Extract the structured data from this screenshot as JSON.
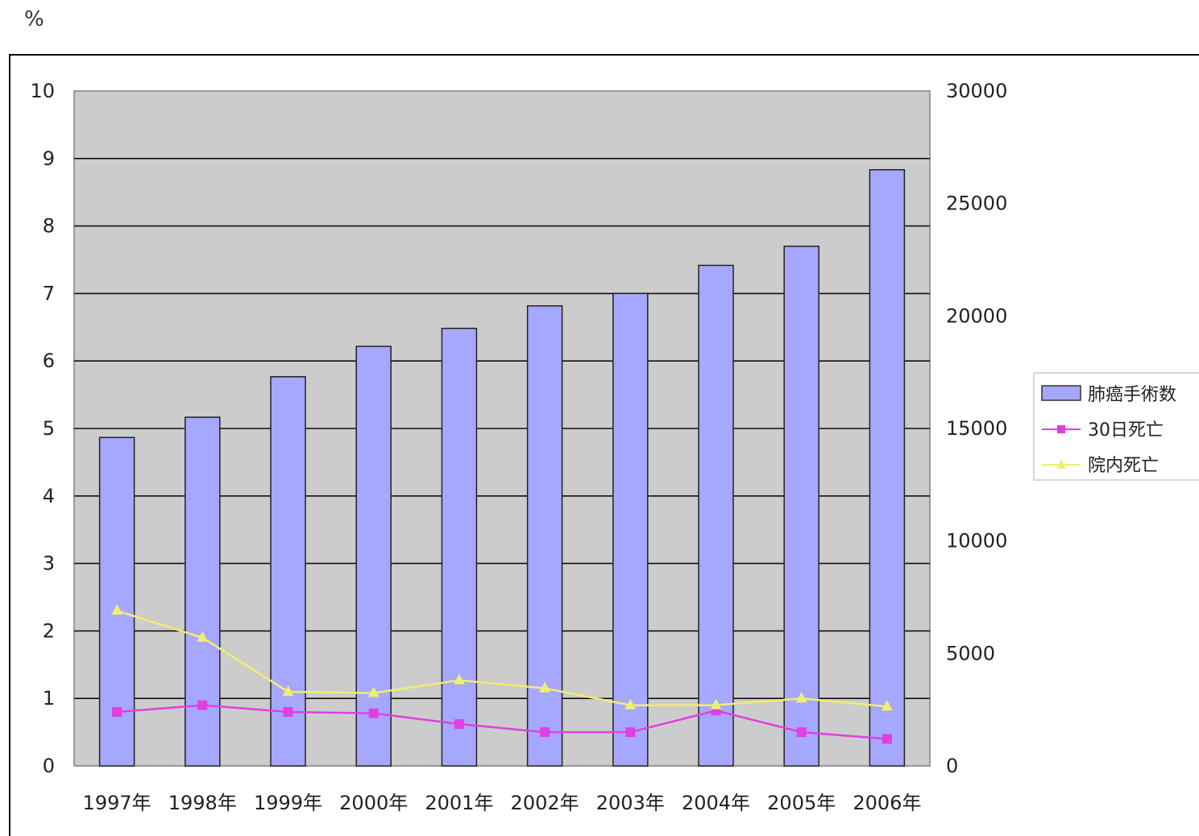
{
  "chart_data": {
    "type": "bar",
    "left_unit": "%",
    "categories": [
      "1997年",
      "1998年",
      "1999年",
      "2000年",
      "2001年",
      "2002年",
      "2003年",
      "2004年",
      "2005年",
      "2006年"
    ],
    "y_left": {
      "min": 0,
      "max": 10,
      "ticks": [
        "0",
        "1",
        "2",
        "3",
        "4",
        "5",
        "6",
        "7",
        "8",
        "9",
        "10"
      ]
    },
    "y_right": {
      "min": 0,
      "max": 30000,
      "ticks": [
        "0",
        "5000",
        "10000",
        "15000",
        "20000",
        "25000",
        "30000"
      ]
    },
    "series": [
      {
        "name": "肺癌手術数",
        "type": "bar",
        "axis": "right",
        "color": "#a6a8ff",
        "values": [
          14600,
          15500,
          17300,
          18650,
          19450,
          20450,
          21000,
          22250,
          23100,
          26500
        ]
      },
      {
        "name": "30日死亡",
        "type": "line",
        "axis": "left",
        "color": "#e040e0",
        "marker": "square",
        "values": [
          0.8,
          0.9,
          0.8,
          0.78,
          0.62,
          0.5,
          0.5,
          0.82,
          0.5,
          0.4
        ]
      },
      {
        "name": "院内死亡",
        "type": "line",
        "axis": "left",
        "color": "#f0ee70",
        "marker": "triangle",
        "values": [
          2.3,
          1.9,
          1.1,
          1.08,
          1.27,
          1.15,
          0.9,
          0.9,
          1.0,
          0.88
        ]
      }
    ],
    "grid": true,
    "plot_background": "#cccccc",
    "legend_position": "right"
  }
}
